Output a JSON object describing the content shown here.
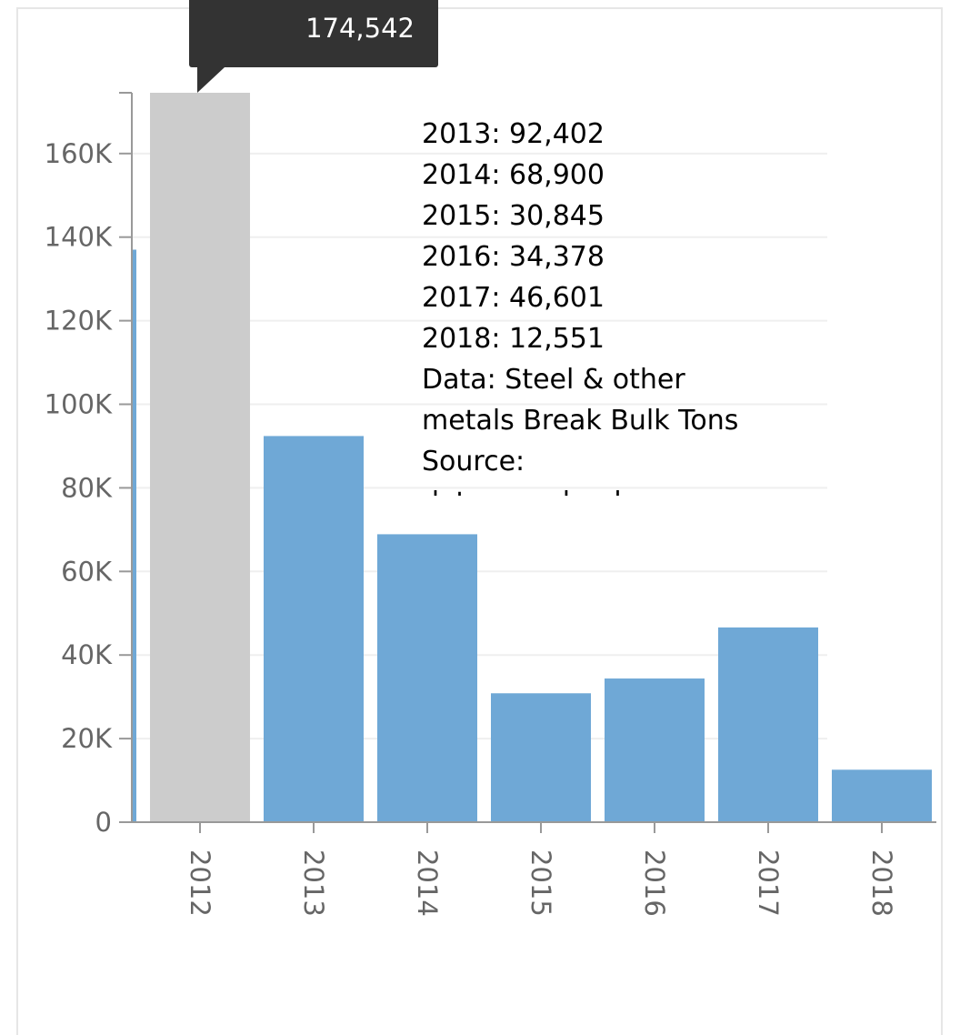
{
  "chart_data": {
    "type": "bar",
    "categories": [
      "2012",
      "2013",
      "2014",
      "2015",
      "2016",
      "2017",
      "2018"
    ],
    "series": [
      {
        "values": [
          174542,
          92402,
          68900,
          30845,
          34378,
          46601,
          12551
        ]
      }
    ],
    "partial_bar_value": 137000,
    "ylim": [
      0,
      174542
    ],
    "y_ticks": [
      0,
      20000,
      40000,
      60000,
      80000,
      100000,
      120000,
      140000,
      160000
    ],
    "y_tick_labels": [
      "0",
      "20K",
      "40K",
      "60K",
      "80K",
      "100K",
      "120K",
      "140K",
      "160K"
    ],
    "grid": true,
    "highlighted_category": "2012",
    "colors": {
      "bar": "#6fa8d6",
      "highlight": "#cccccc",
      "grid": "#efefef",
      "axis": "#999999"
    },
    "tooltip": {
      "value_label": "174,542"
    },
    "annotation_lines": [
      "2013: 92,402",
      "2014: 68,900",
      "2015: 30,845",
      "2016: 34,378",
      "2017: 46,601",
      "2018: 12,551",
      "Data: Steel & other",
      "metals Break Bulk Tons",
      "Source:",
      "data.maryland.gov"
    ]
  }
}
